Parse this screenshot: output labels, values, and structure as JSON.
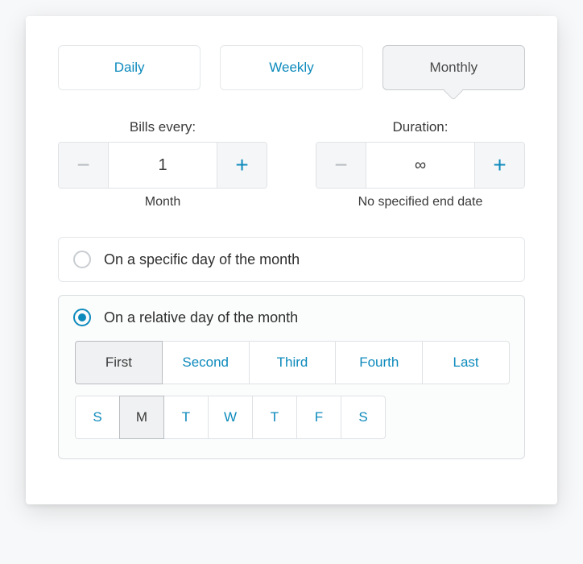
{
  "colors": {
    "accent": "#0d8abc",
    "text": "#3a3a3a",
    "muted": "#b7bcc0",
    "border": "#e0e3e6",
    "panel_bg": "#ffffff",
    "selected_bg": "#f3f4f5"
  },
  "frequency": {
    "options": [
      "Daily",
      "Weekly",
      "Monthly"
    ],
    "selected_index": 2
  },
  "bills_every": {
    "label": "Bills every:",
    "value": "1",
    "unit": "Month"
  },
  "duration": {
    "label": "Duration:",
    "value": "∞",
    "sub": "No specified end date"
  },
  "day_mode": {
    "specific_label": "On a specific day of the month",
    "relative_label": "On a relative day of the month",
    "selected": "relative"
  },
  "ordinals": {
    "options": [
      "First",
      "Second",
      "Third",
      "Fourth",
      "Last"
    ],
    "selected_index": 0
  },
  "weekdays": {
    "options": [
      "S",
      "M",
      "T",
      "W",
      "T",
      "F",
      "S"
    ],
    "selected_index": 1
  }
}
